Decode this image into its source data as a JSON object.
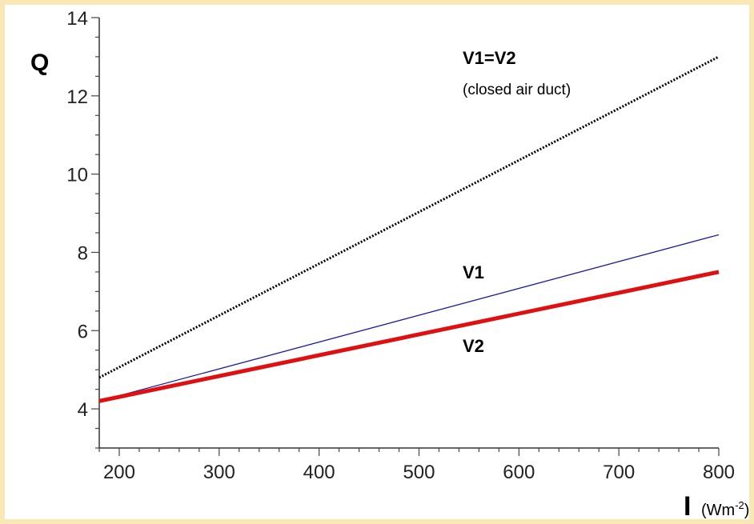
{
  "chart_data": {
    "type": "line",
    "xlabel": "I",
    "xlabel_unit": "(Wm",
    "xlabel_unit_exp": "-2",
    "xlabel_unit_close": ")",
    "ylabel": "Q",
    "xlim": [
      180,
      800
    ],
    "ylim": [
      3,
      14
    ],
    "xticks": [
      200,
      300,
      400,
      500,
      600,
      700,
      800
    ],
    "yticks": [
      4,
      6,
      8,
      10,
      12,
      14
    ],
    "grid": false,
    "legend": "none",
    "series": [
      {
        "name": "V1=V2",
        "x": [
          180,
          800
        ],
        "y": [
          4.8,
          13.0
        ],
        "color": "#000000",
        "style": "dotted"
      },
      {
        "name": "V1",
        "x": [
          180,
          800
        ],
        "y": [
          4.2,
          8.45
        ],
        "color": "#1a1aa8",
        "style": "solid-thin"
      },
      {
        "name": "V2",
        "x": [
          180,
          800
        ],
        "y": [
          4.2,
          7.5
        ],
        "color": "#e01010",
        "style": "solid-thick"
      }
    ],
    "annotations": [
      {
        "text": "V1=V2",
        "style": "bold"
      },
      {
        "text": "(closed air duct)",
        "style": "normal"
      },
      {
        "text": "V1",
        "style": "bold"
      },
      {
        "text": "V2",
        "style": "bold"
      }
    ]
  }
}
